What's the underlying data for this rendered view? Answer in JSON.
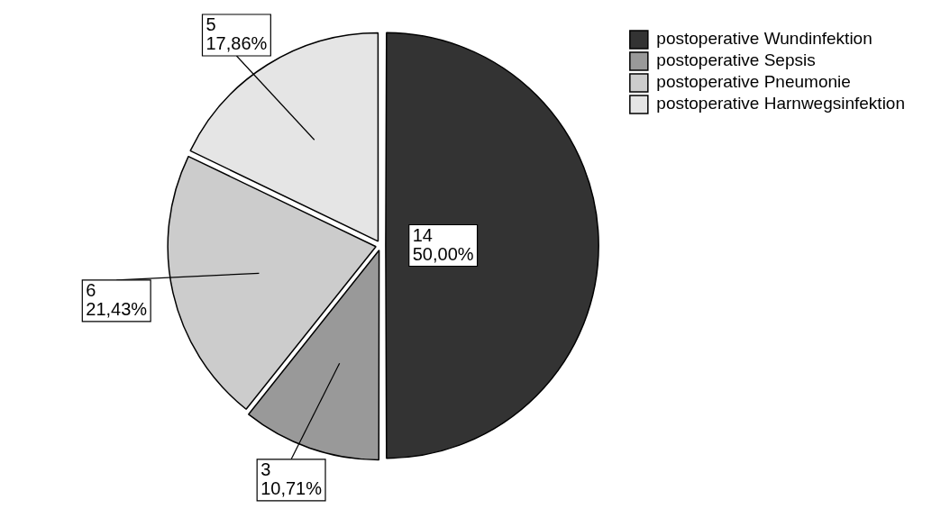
{
  "chart_data": {
    "type": "pie",
    "categories": [
      "postoperative Wundinfektion",
      "postoperative Sepsis",
      "postoperative Pneumonie",
      "postoperative Harnwegsinfektion"
    ],
    "values": [
      14,
      3,
      6,
      5
    ],
    "colors": [
      "#333333",
      "#999999",
      "#cccccc",
      "#e5e5e5"
    ],
    "value_labels": [
      "14\n50,00%",
      "3\n10,71%",
      "6\n21,43%",
      "5\n17,86%"
    ],
    "legend": "top right"
  }
}
